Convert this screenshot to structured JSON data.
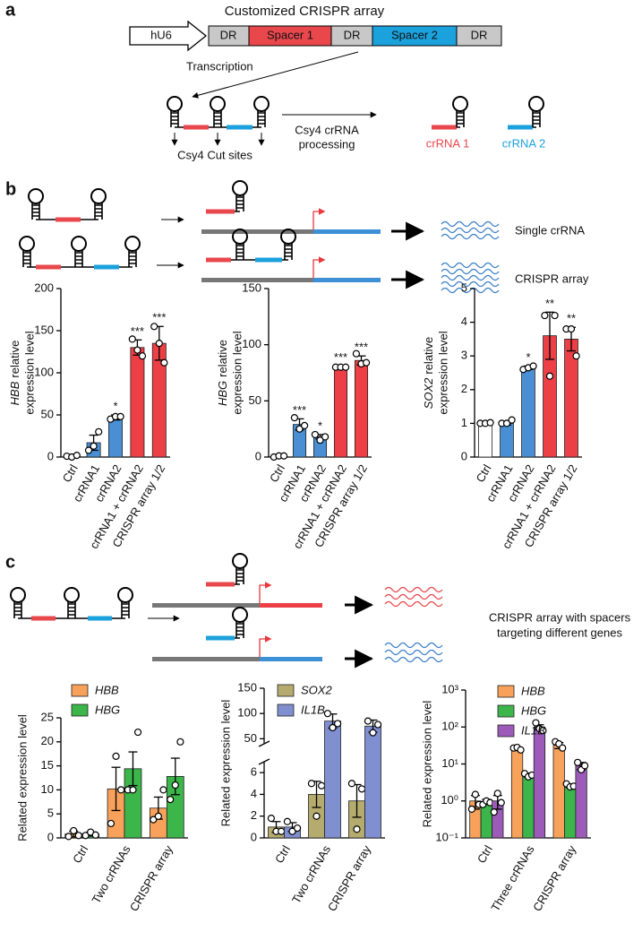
{
  "panel_labels": [
    "a",
    "b",
    "c"
  ],
  "panel_a": {
    "title": "Customized CRISPR array",
    "promoter": "hU6",
    "array": [
      "DR",
      "Spacer 1",
      "DR",
      "Spacer 2",
      "DR"
    ],
    "transcription": "Transcription",
    "processing": [
      "Csy4 crRNA",
      "processing"
    ],
    "cut_sites": "Csy4 Cut sites",
    "products": [
      "crRNA 1",
      "crRNA 2"
    ]
  },
  "panel_b": {
    "outputs": [
      "Single crRNA",
      "CRISPR array"
    ]
  },
  "panel_c": {
    "output": [
      "CRISPR array with spacers",
      "targeting different genes"
    ]
  },
  "chart_data": [
    {
      "type": "bar",
      "ylabel_gene": "HBB",
      "ylabel": [
        "relative",
        "expression level"
      ],
      "categories": [
        "Ctrl",
        "crRNA1",
        "crRNA2",
        "crRNA1 + crRNA2",
        "CRISPR array 1/2"
      ],
      "values": [
        1,
        17,
        47,
        130,
        135
      ],
      "errors": [
        1,
        9,
        3,
        9,
        20
      ],
      "points": [
        [
          1,
          0,
          2
        ],
        [
          8,
          13,
          30
        ],
        [
          45,
          48,
          48
        ],
        [
          140,
          127,
          120
        ],
        [
          155,
          135,
          112
        ]
      ],
      "significance": [
        null,
        null,
        "*",
        "***",
        "***"
      ],
      "colors": [
        "#ffffff",
        "#4a8fd4",
        "#4a8fd4",
        "#ec3f46",
        "#ec3f46"
      ],
      "ylim": [
        0,
        200
      ],
      "yticks": [
        0,
        50,
        100,
        150,
        200
      ]
    },
    {
      "type": "bar",
      "ylabel_gene": "HBG",
      "ylabel": [
        "relative",
        "expression level"
      ],
      "categories": [
        "Ctrl",
        "crRNA1",
        "crRNA2",
        "crRNA1 + crRNA2",
        "CRISPR array 1/2"
      ],
      "values": [
        1,
        29,
        18,
        80,
        86
      ],
      "errors": [
        1,
        5,
        2,
        1,
        4
      ],
      "points": [
        [
          0,
          1,
          1
        ],
        [
          35,
          25,
          28
        ],
        [
          20,
          15,
          18
        ],
        [
          80,
          80,
          80
        ],
        [
          92,
          83,
          84
        ]
      ],
      "significance": [
        null,
        "***",
        "*",
        "***",
        "***"
      ],
      "colors": [
        "#ffffff",
        "#4a8fd4",
        "#4a8fd4",
        "#ec3f46",
        "#ec3f46"
      ],
      "ylim": [
        0,
        150
      ],
      "yticks": [
        0,
        50,
        100,
        150
      ]
    },
    {
      "type": "bar",
      "ylabel_gene": "SOX2",
      "ylabel": [
        "relative",
        "expression level"
      ],
      "categories": [
        "Ctrl",
        "crRNA1",
        "crRNA2",
        "crRNA1 + crRNA2",
        "CRISPR array 1/2"
      ],
      "values": [
        1.0,
        1.0,
        2.65,
        3.6,
        3.5
      ],
      "errors": [
        0.03,
        0.05,
        0.05,
        0.7,
        0.35
      ],
      "points": [
        [
          1,
          1,
          1.02
        ],
        [
          1,
          1,
          1.1
        ],
        [
          2.6,
          2.65,
          2.7
        ],
        [
          4.2,
          2.4,
          4.2
        ],
        [
          3.8,
          3.8,
          3.0
        ]
      ],
      "significance": [
        null,
        null,
        "*",
        "**",
        "**"
      ],
      "colors": [
        "#ffffff",
        "#4a8fd4",
        "#4a8fd4",
        "#ec3f46",
        "#ec3f46"
      ],
      "ylim": [
        0,
        5
      ],
      "yticks": [
        0,
        1,
        2,
        3,
        4,
        5
      ]
    },
    {
      "type": "grouped_bar",
      "ylabel": "Related expression level",
      "categories": [
        "Ctrl",
        "Two crRNAs",
        "CRISPR array"
      ],
      "series": [
        {
          "name": "HBB",
          "color": "#f7a15a",
          "values": [
            0.8,
            10.2,
            6.2
          ],
          "errors": [
            0.6,
            4.5,
            2.3
          ],
          "points": [
            [
              0.3,
              1.5,
              0.5
            ],
            [
              3,
              17,
              10
            ],
            [
              3.8,
              4.5,
              10
            ]
          ]
        },
        {
          "name": "HBG",
          "color": "#3cb54b",
          "values": [
            0.8,
            14.4,
            12.8
          ],
          "errors": [
            0.4,
            3.5,
            3.8
          ],
          "points": [
            [
              0.5,
              1.2,
              0.6
            ],
            [
              10,
              10,
              22
            ],
            [
              8,
              11,
              20
            ]
          ]
        }
      ],
      "ylim": [
        0,
        25
      ],
      "yticks": [
        0,
        5,
        10,
        15,
        20,
        25
      ]
    },
    {
      "type": "grouped_bar",
      "ylabel": "Related expression level",
      "categories": [
        "Ctrl",
        "Two crRNAs",
        "CRISPR array"
      ],
      "series": [
        {
          "name": "SOX2",
          "color": "#b5ab6e",
          "values": [
            1.0,
            4.0,
            3.4
          ],
          "errors": [
            0.5,
            1.2,
            1.5
          ],
          "points": [
            [
              1.8,
              0.6,
              0.6
            ],
            [
              5,
              2,
              4.8
            ],
            [
              5,
              0.8,
              4.5
            ]
          ]
        },
        {
          "name": "IL1B",
          "color": "#7f8fd0",
          "values": [
            1.0,
            85,
            75
          ],
          "errors": [
            0.4,
            14,
            12
          ],
          "points": [
            [
              1.5,
              0.6,
              0.9
            ],
            [
              100,
              72,
              80
            ],
            [
              85,
              62,
              78
            ]
          ]
        }
      ],
      "ylim": [
        0,
        150
      ],
      "ybreak": [
        7,
        40
      ],
      "yticks": [
        0,
        2,
        4,
        6,
        50,
        100,
        150
      ]
    },
    {
      "type": "grouped_bar",
      "ylabel": "Related expression level",
      "log": true,
      "categories": [
        "Ctrl",
        "Three crRNAs",
        "CRISPR array"
      ],
      "series": [
        {
          "name": "HBB",
          "color": "#f7a15a",
          "values": [
            1.0,
            25,
            32
          ],
          "errors": [
            0.4,
            2,
            6
          ],
          "points": [
            [
              0.6,
              1.5,
              0.8
            ],
            [
              27,
              28,
              24
            ],
            [
              40,
              35,
              27
            ]
          ]
        },
        {
          "name": "HBG",
          "color": "#3cb54b",
          "values": [
            0.95,
            5,
            2.6
          ],
          "errors": [
            0.15,
            0.6,
            0.3
          ],
          "points": [
            [
              0.8,
              1.0,
              0.9
            ],
            [
              5.5,
              4.5,
              5
            ],
            [
              2.9,
              2.4,
              2.5
            ]
          ]
        },
        {
          "name": "IL1B",
          "color": "#9c5bb8",
          "values": [
            1.0,
            100,
            9
          ],
          "errors": [
            0.4,
            15,
            2
          ],
          "points": [
            [
              0.5,
              1.6,
              0.9
            ],
            [
              130,
              90,
              80
            ],
            [
              11,
              7,
              9
            ]
          ]
        }
      ],
      "ylim": [
        0.1,
        1000
      ],
      "yticks": [
        {
          "value": 0.1,
          "label": "10⁻¹"
        },
        {
          "value": 1,
          "label": "10⁰"
        },
        {
          "value": 10,
          "label": "10¹"
        },
        {
          "value": 100,
          "label": "10²"
        },
        {
          "value": 1000,
          "label": "10³"
        }
      ]
    }
  ]
}
